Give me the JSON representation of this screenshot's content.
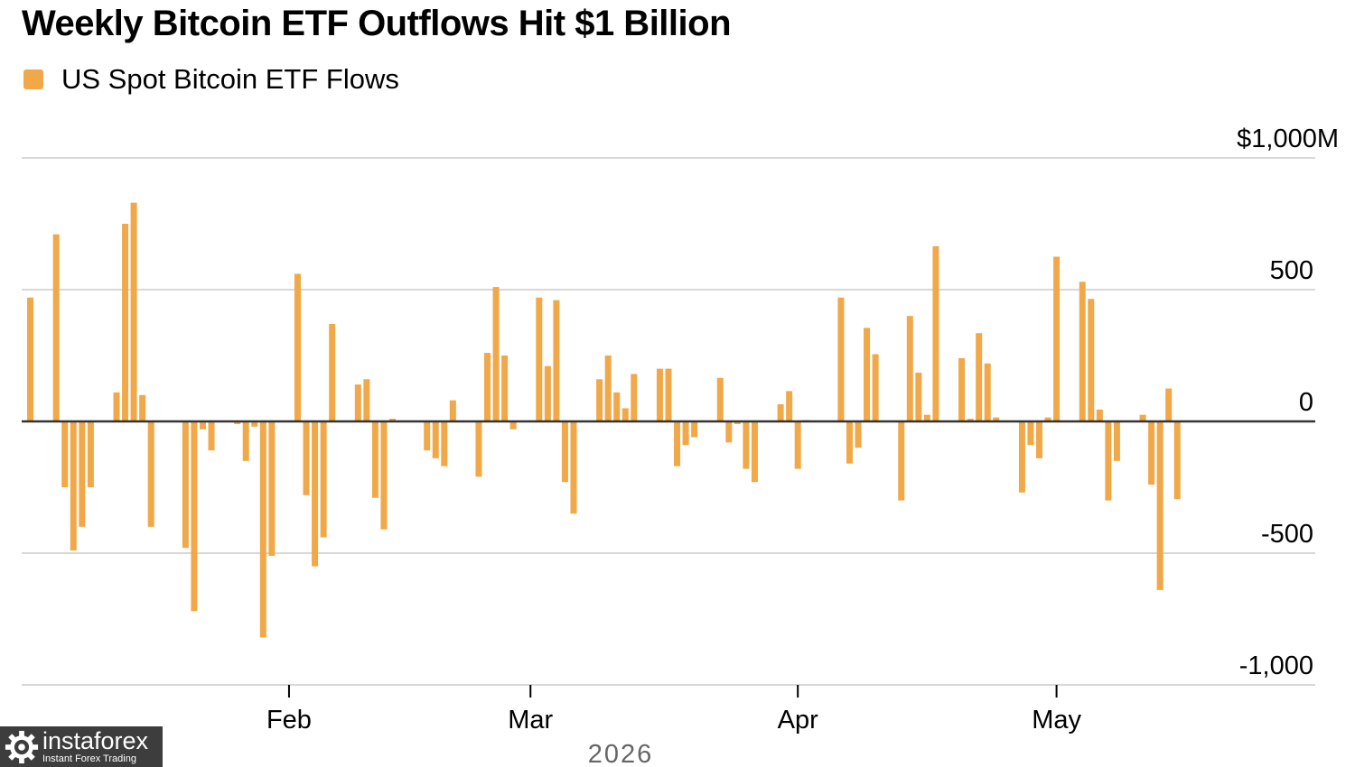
{
  "chart_data": {
    "type": "bar",
    "title": "Weekly Bitcoin ETF Outflows Hit $1 Billion",
    "legend": [
      {
        "name": "US Spot Bitcoin ETF Flows",
        "color": "#f0a848"
      }
    ],
    "series": [
      {
        "name": "US Spot Bitcoin ETF Flows",
        "color": "#f0a848",
        "x": [
          "2026-01-02",
          "2026-01-05",
          "2026-01-06",
          "2026-01-07",
          "2026-01-08",
          "2026-01-09",
          "2026-01-12",
          "2026-01-13",
          "2026-01-14",
          "2026-01-15",
          "2026-01-16",
          "2026-01-20",
          "2026-01-21",
          "2026-01-22",
          "2026-01-23",
          "2026-01-26",
          "2026-01-27",
          "2026-01-28",
          "2026-01-29",
          "2026-01-30",
          "2026-02-02",
          "2026-02-03",
          "2026-02-04",
          "2026-02-05",
          "2026-02-06",
          "2026-02-09",
          "2026-02-10",
          "2026-02-11",
          "2026-02-12",
          "2026-02-13",
          "2026-02-17",
          "2026-02-18",
          "2026-02-19",
          "2026-02-20",
          "2026-02-23",
          "2026-02-24",
          "2026-02-25",
          "2026-02-26",
          "2026-02-27",
          "2026-03-02",
          "2026-03-03",
          "2026-03-04",
          "2026-03-05",
          "2026-03-06",
          "2026-03-09",
          "2026-03-10",
          "2026-03-11",
          "2026-03-12",
          "2026-03-13",
          "2026-03-16",
          "2026-03-17",
          "2026-03-18",
          "2026-03-19",
          "2026-03-20",
          "2026-03-23",
          "2026-03-24",
          "2026-03-25",
          "2026-03-26",
          "2026-03-27",
          "2026-03-30",
          "2026-03-31",
          "2026-04-01",
          "2026-04-02",
          "2026-04-06",
          "2026-04-07",
          "2026-04-08",
          "2026-04-09",
          "2026-04-10",
          "2026-04-13",
          "2026-04-14",
          "2026-04-15",
          "2026-04-16",
          "2026-04-17",
          "2026-04-20",
          "2026-04-21",
          "2026-04-22",
          "2026-04-23",
          "2026-04-24",
          "2026-04-27",
          "2026-04-28",
          "2026-04-29",
          "2026-04-30",
          "2026-05-01",
          "2026-05-04",
          "2026-05-05",
          "2026-05-06",
          "2026-05-07",
          "2026-05-08",
          "2026-05-11",
          "2026-05-12",
          "2026-05-13",
          "2026-05-14",
          "2026-05-15"
        ],
        "values": [
          470,
          710,
          -250,
          -490,
          -400,
          -250,
          110,
          750,
          830,
          100,
          -400,
          -480,
          -720,
          -30,
          -110,
          -10,
          -150,
          -20,
          -820,
          -510,
          560,
          -280,
          -550,
          -440,
          370,
          140,
          160,
          -290,
          -410,
          10,
          -110,
          -140,
          -170,
          80,
          -210,
          260,
          510,
          250,
          -30,
          470,
          210,
          460,
          -230,
          -350,
          160,
          250,
          110,
          50,
          180,
          200,
          200,
          -170,
          -90,
          -60,
          165,
          -80,
          -10,
          -180,
          -230,
          65,
          115,
          -180,
          5,
          470,
          -160,
          -100,
          355,
          255,
          -300,
          400,
          185,
          25,
          665,
          240,
          10,
          335,
          220,
          15,
          -270,
          -90,
          -140,
          15,
          625,
          530,
          465,
          45,
          -300,
          -150,
          25,
          -240,
          -640,
          125,
          -295
        ]
      }
    ],
    "ylim": [
      -1000,
      1000
    ],
    "yticks": [
      1000,
      500,
      0,
      -500,
      -1000
    ],
    "ytick_labels": [
      "$1,000M",
      "500",
      "0",
      "-500",
      "-1,000"
    ],
    "xticks": [
      {
        "date": "2026-02-01",
        "label": "Feb"
      },
      {
        "date": "2026-03-01",
        "label": "Mar"
      },
      {
        "date": "2026-04-01",
        "label": "Apr"
      },
      {
        "date": "2026-05-01",
        "label": "May"
      }
    ],
    "year_label": "2026",
    "grid": true,
    "legend_position": "top-left"
  },
  "watermark": {
    "name": "instaforex",
    "tagline": "Instant Forex Trading"
  },
  "colors": {
    "bar": "#f0a848",
    "grid": "#d8d8d8",
    "zero_line": "#333333",
    "watermark_bg": "#3d3d3d"
  }
}
